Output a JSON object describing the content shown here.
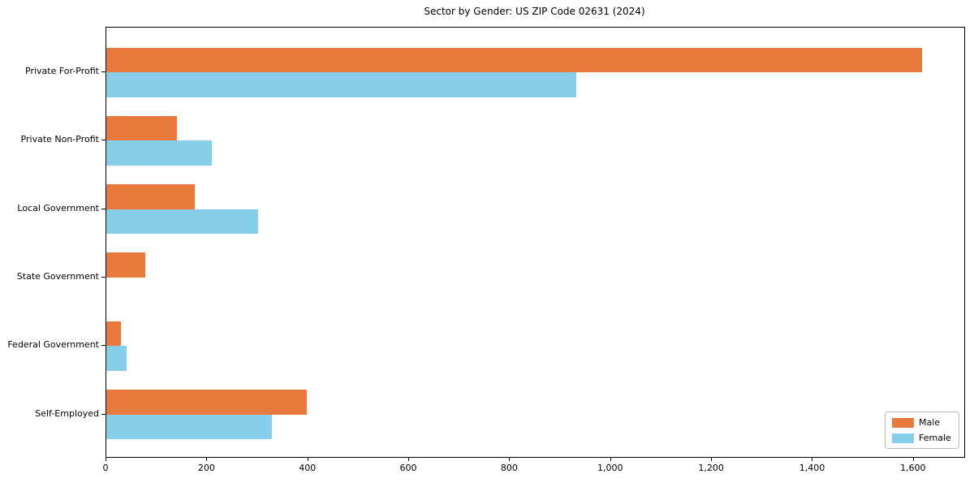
{
  "title": "Sector by Gender: US ZIP Code 02631 (2024)",
  "colors": {
    "male": "#E87A3D",
    "female": "#87CEEB",
    "axis": "#000000",
    "legend_border": "#B9B9B9",
    "background": "#FFFFFF"
  },
  "chart_data": {
    "type": "bar",
    "orientation": "horizontal",
    "title": "Sector by Gender: US ZIP Code 02631 (2024)",
    "xlabel": "",
    "ylabel": "",
    "categories": [
      "Private For-Profit",
      "Private Non-Profit",
      "Local Government",
      "State Government",
      "Federal Government",
      "Self-Employed"
    ],
    "series": [
      {
        "name": "Male",
        "color": "#E87A3D",
        "values": [
          1616,
          140,
          175,
          78,
          29,
          398
        ]
      },
      {
        "name": "Female",
        "color": "#87CEEB",
        "values": [
          932,
          209,
          300,
          0,
          41,
          328
        ]
      }
    ],
    "xlim": [
      0,
      1700
    ],
    "xticks": [
      0,
      200,
      400,
      600,
      800,
      1000,
      1200,
      1400,
      1600
    ],
    "xtick_labels": [
      "0",
      "200",
      "400",
      "600",
      "800",
      "1,000",
      "1,200",
      "1,400",
      "1,600"
    ],
    "grid": false,
    "legend_position": "lower right"
  },
  "legend": {
    "items": [
      {
        "label": "Male"
      },
      {
        "label": "Female"
      }
    ]
  }
}
